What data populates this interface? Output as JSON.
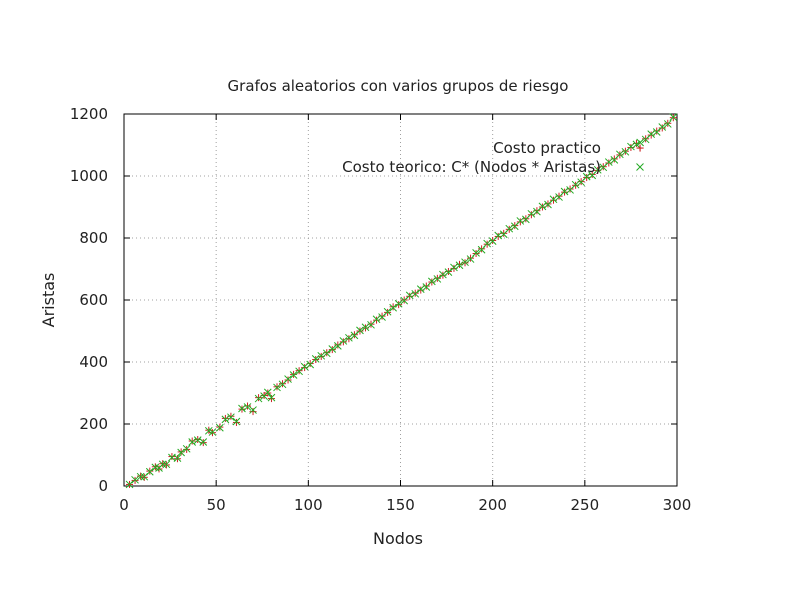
{
  "chart_data": {
    "type": "scatter",
    "title": "Grafos aleatorios con varios grupos de riesgo",
    "xlabel": "Nodos",
    "ylabel": "Aristas",
    "xlim": [
      0,
      300
    ],
    "ylim": [
      0,
      1200
    ],
    "xticks": [
      0,
      50,
      100,
      150,
      200,
      250,
      300
    ],
    "yticks": [
      0,
      200,
      400,
      600,
      800,
      1000,
      1200
    ],
    "grid": true,
    "legend_position": "top-right",
    "series": [
      {
        "name": "Costo practico",
        "marker": "plus",
        "color": "#cc2222",
        "x": [
          3,
          6,
          9,
          11,
          14,
          17,
          19,
          21,
          23,
          26,
          29,
          31,
          34,
          37,
          40,
          43,
          46,
          48,
          52,
          55,
          58,
          61,
          64,
          67,
          70,
          73,
          76,
          78,
          80,
          83,
          86,
          89,
          92,
          95,
          98,
          101,
          104,
          107,
          110,
          113,
          116,
          119,
          122,
          125,
          128,
          131,
          134,
          137,
          140,
          143,
          146,
          149,
          152,
          155,
          158,
          161,
          164,
          167,
          170,
          173,
          176,
          179,
          182,
          185,
          188,
          191,
          194,
          197,
          200,
          203,
          206,
          209,
          212,
          215,
          218,
          221,
          224,
          227,
          230,
          233,
          236,
          239,
          242,
          245,
          248,
          251,
          254,
          257,
          260,
          263,
          266,
          269,
          272,
          275,
          278,
          280,
          283,
          286,
          289,
          292,
          295,
          298
        ],
        "y": [
          5,
          18,
          32,
          28,
          48,
          62,
          55,
          72,
          68,
          95,
          88,
          110,
          118,
          145,
          150,
          140,
          180,
          172,
          190,
          218,
          225,
          205,
          248,
          258,
          240,
          285,
          292,
          300,
          282,
          320,
          330,
          342,
          360,
          372,
          382,
          395,
          408,
          418,
          430,
          440,
          455,
          465,
          475,
          488,
          500,
          510,
          522,
          535,
          548,
          560,
          578,
          585,
          600,
          612,
          622,
          632,
          645,
          658,
          670,
          680,
          692,
          702,
          715,
          720,
          735,
          750,
          765,
          780,
          792,
          805,
          815,
          828,
          840,
          852,
          862,
          875,
          888,
          900,
          910,
          922,
          935,
          948,
          958,
          970,
          982,
          995,
          1005,
          1018,
          1030,
          1042,
          1055,
          1068,
          1080,
          1092,
          1105,
          1090,
          1120,
          1132,
          1145,
          1155,
          1170,
          1188
        ]
      },
      {
        "name": "Costo teorico: C* (Nodos * Aristas)",
        "marker": "cross",
        "color": "#22aa22",
        "x": [
          3,
          6,
          9,
          11,
          14,
          17,
          19,
          21,
          23,
          26,
          29,
          31,
          34,
          37,
          40,
          43,
          46,
          48,
          52,
          55,
          58,
          61,
          64,
          67,
          70,
          73,
          76,
          78,
          80,
          83,
          86,
          89,
          92,
          95,
          98,
          101,
          104,
          107,
          110,
          113,
          116,
          119,
          122,
          125,
          128,
          131,
          134,
          137,
          140,
          143,
          146,
          149,
          152,
          155,
          158,
          161,
          164,
          167,
          170,
          173,
          176,
          179,
          182,
          185,
          188,
          191,
          194,
          197,
          200,
          203,
          206,
          209,
          212,
          215,
          218,
          221,
          224,
          227,
          230,
          233,
          236,
          239,
          242,
          245,
          248,
          251,
          254,
          257,
          260,
          263,
          266,
          269,
          272,
          275,
          278,
          280,
          283,
          286,
          289,
          292,
          295,
          298
        ],
        "y": [
          5,
          20,
          30,
          30,
          46,
          60,
          58,
          70,
          70,
          92,
          90,
          108,
          120,
          142,
          148,
          142,
          178,
          174,
          188,
          215,
          222,
          208,
          250,
          255,
          245,
          282,
          290,
          302,
          285,
          318,
          328,
          345,
          358,
          370,
          385,
          392,
          410,
          420,
          428,
          442,
          452,
          468,
          478,
          486,
          502,
          512,
          520,
          538,
          545,
          562,
          575,
          588,
          598,
          615,
          620,
          635,
          642,
          660,
          668,
          682,
          690,
          705,
          712,
          722,
          732,
          752,
          762,
          782,
          790,
          808,
          812,
          830,
          838,
          855,
          860,
          878,
          885,
          902,
          908,
          925,
          932,
          950,
          955,
          972,
          980,
          998,
          1002,
          1020,
          1028,
          1045,
          1052,
          1070,
          1078,
          1095,
          1102,
          1108,
          1118,
          1135,
          1142,
          1158,
          1168,
          1190
        ]
      }
    ]
  }
}
